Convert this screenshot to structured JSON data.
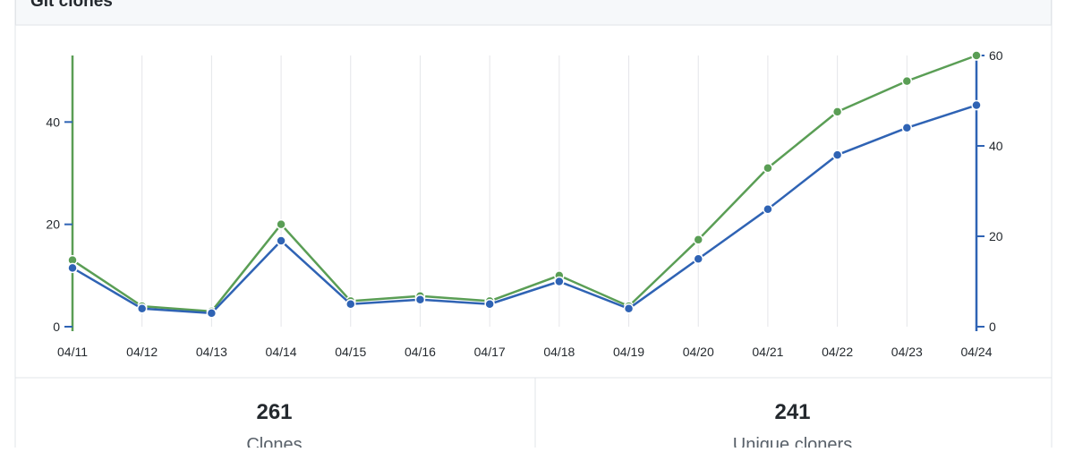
{
  "chart_data": {
    "type": "line",
    "title": "Git clones",
    "x": [
      "04/11",
      "04/12",
      "04/13",
      "04/14",
      "04/15",
      "04/16",
      "04/17",
      "04/18",
      "04/19",
      "04/20",
      "04/21",
      "04/22",
      "04/23",
      "04/24"
    ],
    "series": [
      {
        "name": "Clones",
        "color": "#5a9e55",
        "values": [
          13,
          4,
          3,
          20,
          5,
          6,
          5,
          10,
          4,
          17,
          31,
          42,
          48,
          53
        ]
      },
      {
        "name": "Unique cloners",
        "color": "#2f63b4",
        "axis": "y2",
        "values": [
          13,
          4,
          3,
          19,
          5,
          6,
          5,
          10,
          4,
          15,
          26,
          38,
          44,
          49
        ]
      }
    ],
    "ylim": [
      0,
      53
    ],
    "yticks": [
      0,
      20,
      40
    ],
    "y2lim": [
      0,
      60
    ],
    "y2ticks": [
      0,
      20,
      40,
      60
    ],
    "grid": true
  },
  "summary": [
    {
      "value": 261,
      "label": "Clones"
    },
    {
      "value": 241,
      "label": "Unique cloners"
    }
  ]
}
